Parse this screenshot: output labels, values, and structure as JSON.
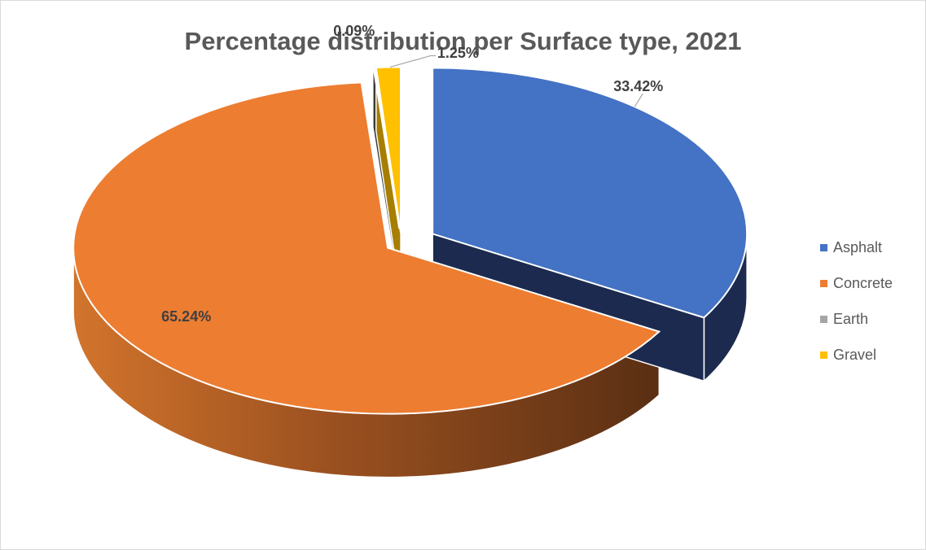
{
  "chart_data": {
    "type": "pie",
    "title": "Percentage distribution per Surface type, 2021",
    "categories": [
      "Asphalt",
      "Concrete",
      "Earth",
      "Gravel"
    ],
    "values": [
      33.42,
      65.24,
      0.09,
      1.25
    ],
    "data_labels": [
      "33.42%",
      "65.24%",
      "0.09%",
      "1.25%"
    ],
    "colors": [
      "#4472C4",
      "#ED7D31",
      "#A5A5A5",
      "#FFC000"
    ],
    "legend_position": "right",
    "style": "3d-exploded"
  }
}
